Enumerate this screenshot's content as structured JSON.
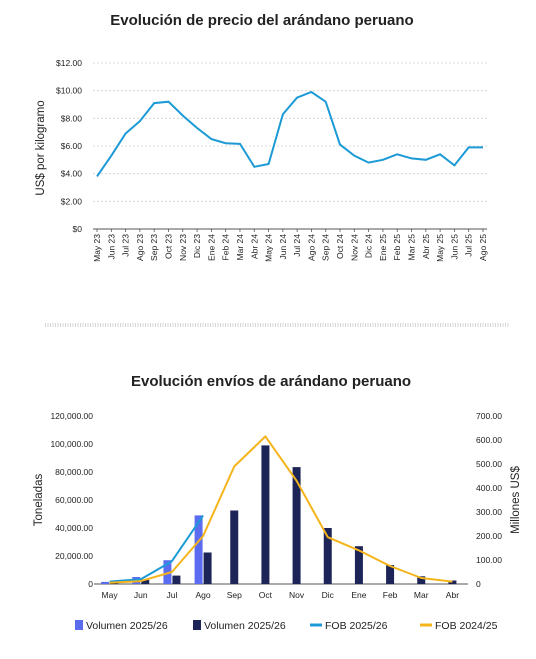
{
  "chart_data": [
    {
      "type": "line",
      "title": "Evolución de precio del arándano peruano",
      "ylabel": "US$ por kilogramo",
      "xlabel": "",
      "ylim": [
        0,
        12
      ],
      "yticks": [
        {
          "value": 0,
          "label": "$0"
        },
        {
          "value": 2,
          "label": "$2.00"
        },
        {
          "value": 4,
          "label": "$4.00"
        },
        {
          "value": 6,
          "label": "$6.00"
        },
        {
          "value": 8,
          "label": "$8.00"
        },
        {
          "value": 10,
          "label": "$10.00"
        },
        {
          "value": 12,
          "label": "$12.00"
        }
      ],
      "grid": true,
      "color": "#1b9ad6",
      "categories": [
        "May 23",
        "Jun 23",
        "Jul 23",
        "Ago 23",
        "Sep 23",
        "Oct 23",
        "Nov 23",
        "Dic 23",
        "Ene 24",
        "Feb 24",
        "Mar 24",
        "Abr 24",
        "May 24",
        "Jun 24",
        "Jul 24",
        "Ago 24",
        "Sep 24",
        "Oct 24",
        "Nov 24",
        "Dic 24",
        "Ene 25",
        "Feb 25",
        "Mar 25",
        "Abr 25",
        "May 25",
        "Jun 25",
        "Jul 25",
        "Ago 25"
      ],
      "values": [
        3.8,
        5.3,
        6.9,
        7.8,
        9.1,
        9.2,
        8.2,
        7.3,
        6.5,
        6.2,
        6.15,
        4.5,
        4.7,
        8.3,
        9.5,
        9.9,
        9.2,
        6.1,
        5.3,
        4.8,
        5.0,
        5.4,
        5.1,
        5.0,
        5.4,
        4.6,
        5.9,
        5.9
      ]
    },
    {
      "type": "bar",
      "title": "Evolución envíos de arándano peruano",
      "ylabel": "Toneladas",
      "y2label": "Millones US$",
      "categories": [
        "May",
        "Jun",
        "Jul",
        "Ago",
        "Sep",
        "Oct",
        "Nov",
        "Dic",
        "Ene",
        "Feb",
        "Mar",
        "Abr"
      ],
      "ylim": [
        0,
        120000
      ],
      "yticks": [
        {
          "value": 0,
          "label": "0"
        },
        {
          "value": 20000,
          "label": "20,000.00"
        },
        {
          "value": 40000,
          "label": "40,000.00"
        },
        {
          "value": 60000,
          "label": "60,000.00"
        },
        {
          "value": 80000,
          "label": "80,000.00"
        },
        {
          "value": 100000,
          "label": "100,000.00"
        },
        {
          "value": 120000,
          "label": "120,000.00"
        }
      ],
      "y2lim": [
        0,
        700
      ],
      "y2ticks": [
        {
          "value": 0,
          "label": "0"
        },
        {
          "value": 100,
          "label": "100.00"
        },
        {
          "value": 200,
          "label": "200.00"
        },
        {
          "value": 300,
          "label": "300.00"
        },
        {
          "value": 400,
          "label": "400.00"
        },
        {
          "value": 500,
          "label": "500.00"
        },
        {
          "value": 600,
          "label": "600.00"
        },
        {
          "value": 700,
          "label": "700.00"
        }
      ],
      "legend_position": "bottom",
      "series": [
        {
          "name": "Volumen 2025/26",
          "kind": "bar",
          "axis": "left",
          "color": "#5b6cf0",
          "values": [
            1500,
            5000,
            17000,
            49000,
            null,
            null,
            null,
            null,
            null,
            null,
            null,
            null
          ]
        },
        {
          "name": "Volumen 2025/26",
          "kind": "bar",
          "axis": "left",
          "color": "#1d2558",
          "values": [
            1000,
            3000,
            6000,
            22500,
            52500,
            99000,
            83500,
            40000,
            27000,
            13500,
            5500,
            2500
          ]
        },
        {
          "name": "FOB 2025/26",
          "kind": "line",
          "axis": "right",
          "color": "#1b9ad6",
          "values": [
            10,
            20,
            95,
            285,
            null,
            null,
            null,
            null,
            null,
            null,
            null,
            null
          ]
        },
        {
          "name": "FOB 2024/25",
          "kind": "line",
          "axis": "right",
          "color": "#f4b41a",
          "values": [
            5,
            12,
            50,
            200,
            490,
            615,
            430,
            195,
            140,
            75,
            25,
            10
          ]
        }
      ]
    }
  ]
}
